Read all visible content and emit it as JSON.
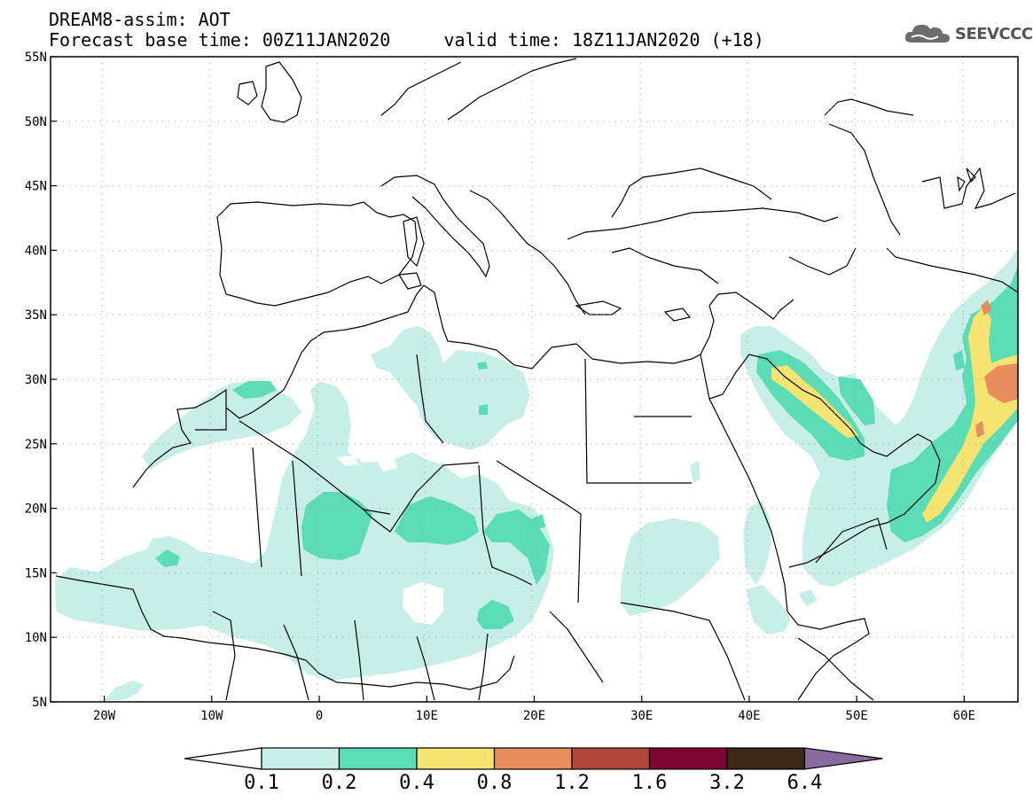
{
  "header": {
    "line1": "DREAM8-assim: AOT",
    "line2": "Forecast base time: 00Z11JAN2020     valid time: 18Z11JAN2020 (+18)"
  },
  "logo": {
    "text": "SEEVCCC",
    "icon": "cloud-icon"
  },
  "map": {
    "projection": "equirectangular",
    "lon_range": [
      -25,
      65
    ],
    "lat_range": [
      5,
      55
    ],
    "lon_ticks": [
      {
        "value": -20,
        "label": "20W"
      },
      {
        "value": -10,
        "label": "10W"
      },
      {
        "value": 0,
        "label": "0"
      },
      {
        "value": 10,
        "label": "10E"
      },
      {
        "value": 20,
        "label": "20E"
      },
      {
        "value": 30,
        "label": "30E"
      },
      {
        "value": 40,
        "label": "40E"
      },
      {
        "value": 50,
        "label": "50E"
      },
      {
        "value": 60,
        "label": "60E"
      }
    ],
    "lat_ticks": [
      {
        "value": 55,
        "label": "55N"
      },
      {
        "value": 50,
        "label": "50N"
      },
      {
        "value": 45,
        "label": "45N"
      },
      {
        "value": 40,
        "label": "40N"
      },
      {
        "value": 35,
        "label": "35N"
      },
      {
        "value": 30,
        "label": "30N"
      },
      {
        "value": 25,
        "label": "25N"
      },
      {
        "value": 20,
        "label": "20N"
      },
      {
        "value": 15,
        "label": "15N"
      },
      {
        "value": 10,
        "label": "10N"
      },
      {
        "value": 5,
        "label": "5N"
      }
    ],
    "grid": true
  },
  "colorbar": {
    "levels": [
      "0.1",
      "0.2",
      "0.4",
      "0.8",
      "1.2",
      "1.6",
      "3.2",
      "6.4"
    ],
    "colors": [
      "#ffffff",
      "#c7efe8",
      "#5cdcb4",
      "#f5e372",
      "#e98c5e",
      "#b1473a",
      "#7d0730",
      "#3d2716",
      "#8b6aa0"
    ]
  }
}
